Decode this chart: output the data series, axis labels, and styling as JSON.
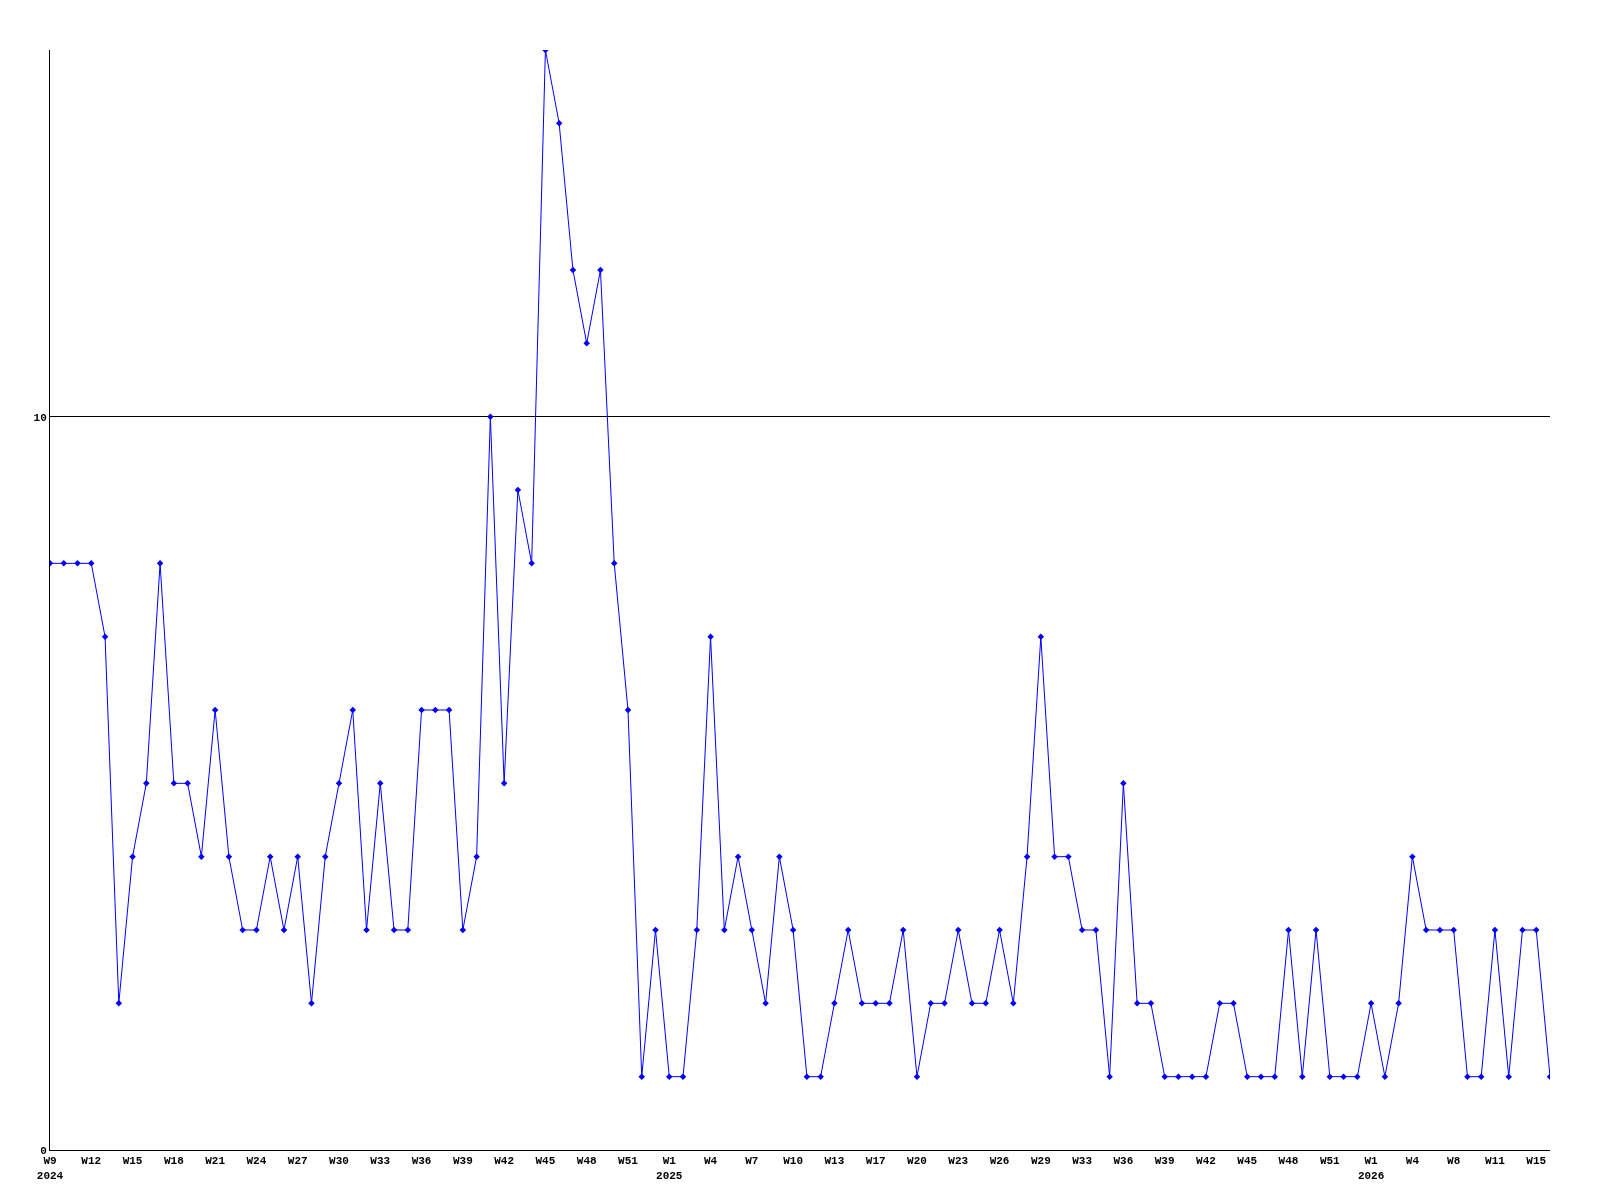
{
  "chart_data": {
    "type": "line",
    "categories": [
      "W9\n2024",
      null,
      null,
      "W12",
      null,
      null,
      "W15",
      null,
      null,
      "W18",
      null,
      null,
      "W21",
      null,
      null,
      "W24",
      null,
      null,
      "W27",
      null,
      null,
      "W30",
      null,
      null,
      "W33",
      null,
      null,
      "W36",
      null,
      null,
      "W39",
      null,
      null,
      "W42",
      null,
      null,
      "W45",
      null,
      null,
      "W48",
      null,
      null,
      "W51",
      null,
      null,
      "W1\n2025",
      null,
      null,
      "W4",
      null,
      null,
      "W7",
      null,
      null,
      "W10",
      null,
      null,
      "W13",
      null,
      null,
      "W17",
      null,
      null,
      "W20",
      null,
      null,
      "W23",
      null,
      null,
      "W26",
      null,
      null,
      "W29",
      null,
      null,
      "W33",
      null,
      null,
      "W36",
      null,
      null,
      "W39",
      null,
      null,
      "W42",
      null,
      null,
      "W45",
      null,
      null,
      "W48",
      null,
      null,
      "W51",
      null,
      null,
      "W1\n2026",
      null,
      null,
      "W4",
      null,
      null,
      "W8",
      null,
      null,
      "W11",
      null,
      null,
      "W15",
      null
    ],
    "series": [
      {
        "color": "#0000ff",
        "values": [
          8,
          8,
          8,
          8,
          7,
          2,
          4,
          5,
          8,
          5,
          5,
          4,
          6,
          4,
          3,
          3,
          4,
          3,
          4,
          2,
          4,
          5,
          6,
          3,
          5,
          3,
          3,
          6,
          6,
          6,
          3,
          4,
          10,
          5,
          9,
          8,
          15,
          14,
          12,
          11,
          12,
          8,
          6,
          1,
          3,
          1,
          1,
          3,
          7,
          3,
          4,
          3,
          2,
          4,
          3,
          1,
          1,
          2,
          3,
          2,
          2,
          2,
          3,
          1,
          2,
          2,
          3,
          2,
          2,
          3,
          2,
          4,
          7,
          4,
          4,
          3,
          3,
          1,
          5,
          2,
          2,
          1,
          1,
          1,
          1,
          2,
          2,
          1,
          1,
          1,
          3,
          1,
          3,
          1,
          1,
          1,
          2,
          1,
          2,
          4,
          3,
          3,
          3,
          1,
          1,
          3,
          1,
          3,
          3,
          1
        ]
      }
    ],
    "ylim": [
      0,
      15
    ],
    "yticks": [
      0,
      10
    ],
    "grid": "y",
    "marker": "diamond",
    "line_style": "solid"
  }
}
